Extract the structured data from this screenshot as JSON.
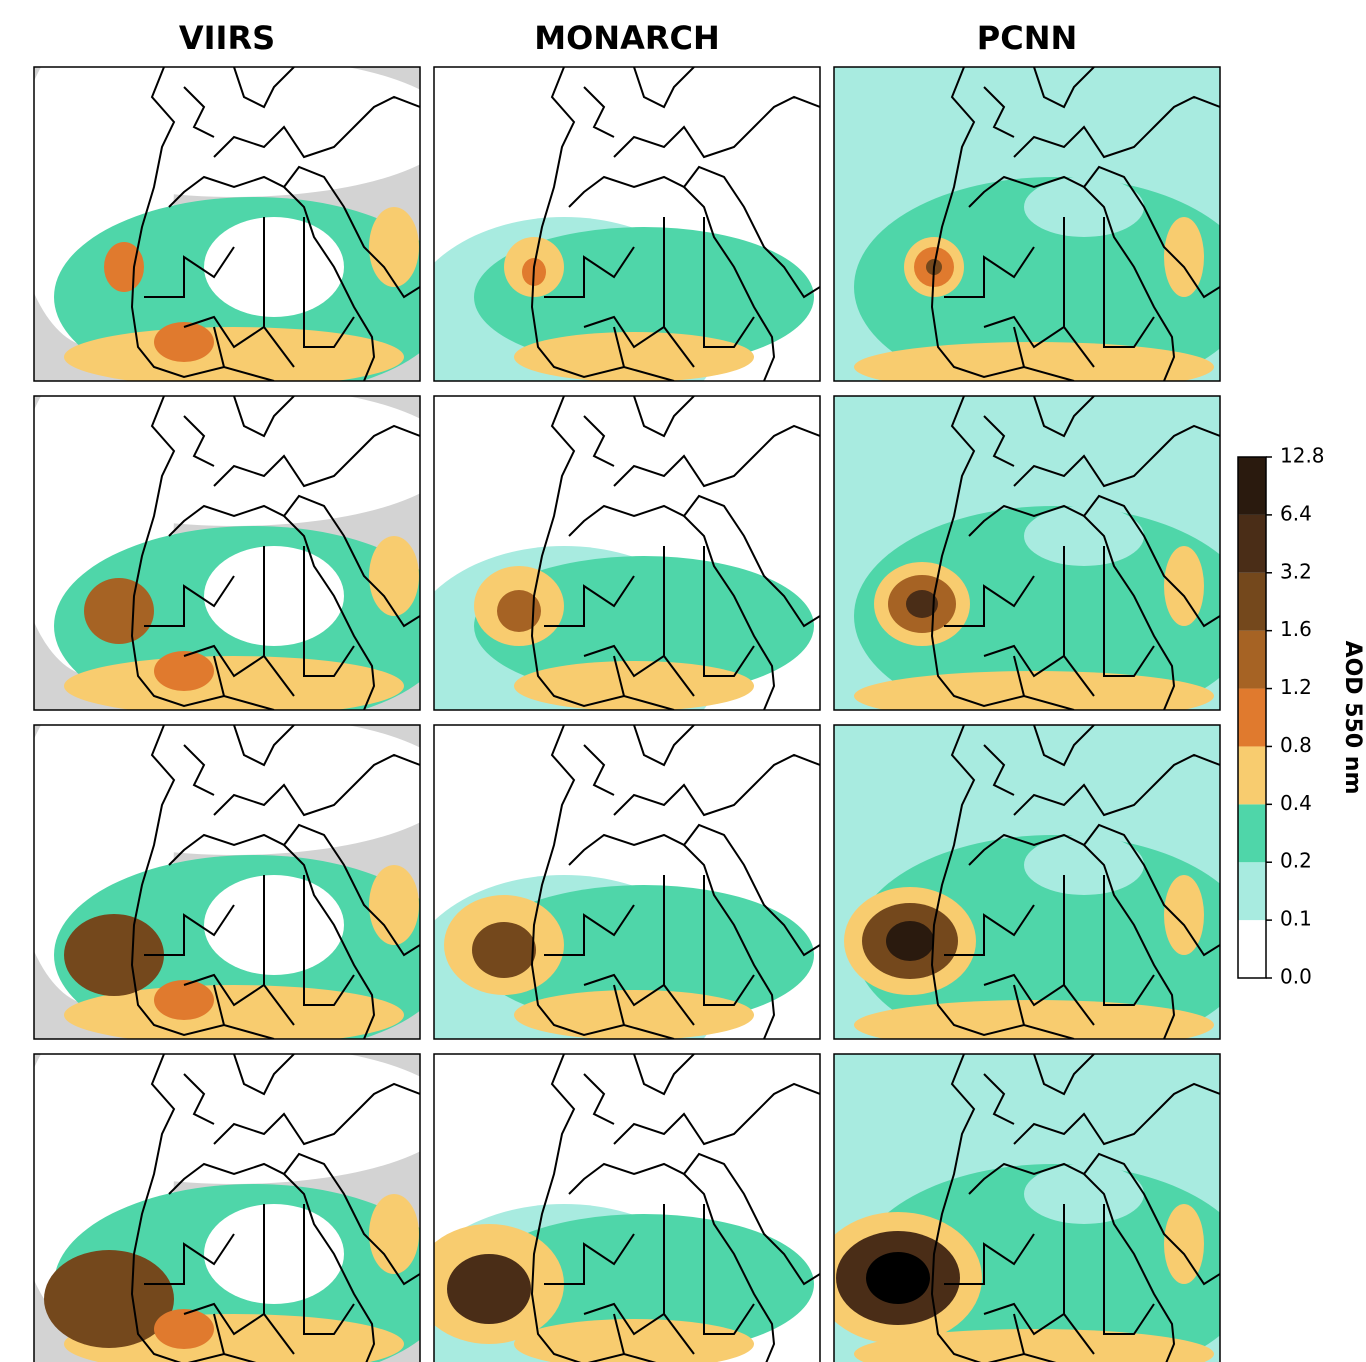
{
  "chart_data": {
    "type": "map-grid",
    "columns": [
      "VIIRS",
      "MONARCH",
      "PCNN"
    ],
    "no_data_color": "#d3d3d3",
    "colorbar": {
      "label": "AOD 550 nm",
      "ticks": [
        {
          "value": 0,
          "label": "0.0"
        },
        0.1,
        0.2,
        0.4,
        0.8,
        1.2,
        1.6,
        3.2,
        6.4,
        12.8
      ],
      "colors": [
        "#ffffff",
        "#a8ebe0",
        "#4fd6a9",
        "#f8cc6f",
        "#e07a2e",
        "#a66324",
        "#74481c",
        "#4a2d17",
        "#2a1a0e"
      ]
    }
  }
}
